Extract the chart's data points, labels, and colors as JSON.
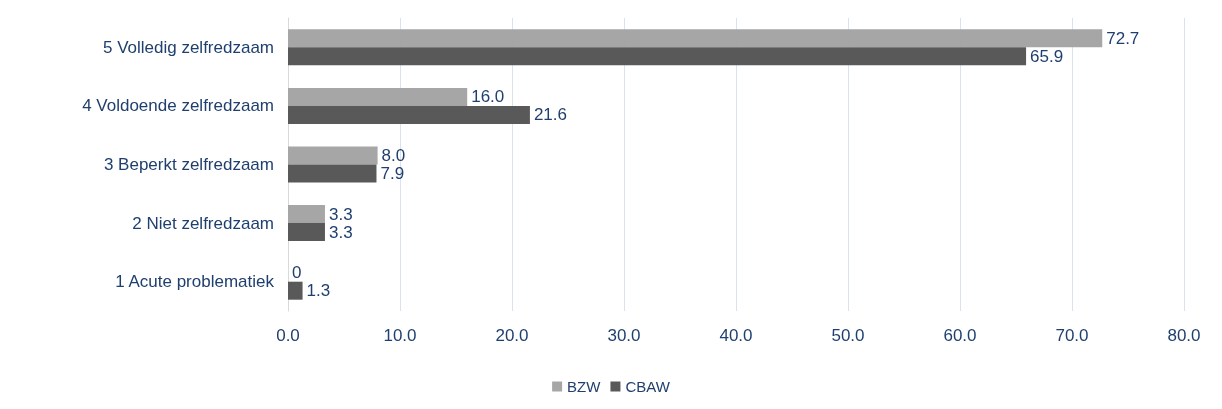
{
  "chart_data": {
    "type": "bar",
    "orientation": "horizontal",
    "categories": [
      "5 Volledig zelfredzaam",
      "4 Voldoende zelfredzaam",
      "3 Beperkt zelfredzaam",
      "2 Niet zelfredzaam",
      "1 Acute problematiek"
    ],
    "series": [
      {
        "name": "BZW",
        "color": "#a6a6a6",
        "values": [
          72.7,
          16.0,
          8.0,
          3.3,
          0
        ],
        "value_labels": [
          "72.7",
          "16.0",
          "8.0",
          "3.3",
          "0"
        ]
      },
      {
        "name": "CBAW",
        "color": "#595959",
        "values": [
          65.9,
          21.6,
          7.9,
          3.3,
          1.3
        ],
        "value_labels": [
          "65.9",
          "21.6",
          "7.9",
          "3.3",
          "1.3"
        ]
      }
    ],
    "xlim": [
      0,
      80
    ],
    "xticks": [
      {
        "value": 0,
        "label": "0.0"
      },
      {
        "value": 10,
        "label": "10.0"
      },
      {
        "value": 20,
        "label": "20.0"
      },
      {
        "value": 30,
        "label": "30.0"
      },
      {
        "value": 40,
        "label": "40.0"
      },
      {
        "value": 50,
        "label": "50.0"
      },
      {
        "value": 60,
        "label": "60.0"
      },
      {
        "value": 70,
        "label": "70.0"
      },
      {
        "value": 80,
        "label": "80.0"
      }
    ],
    "grid": "x",
    "legend": "bottom"
  }
}
